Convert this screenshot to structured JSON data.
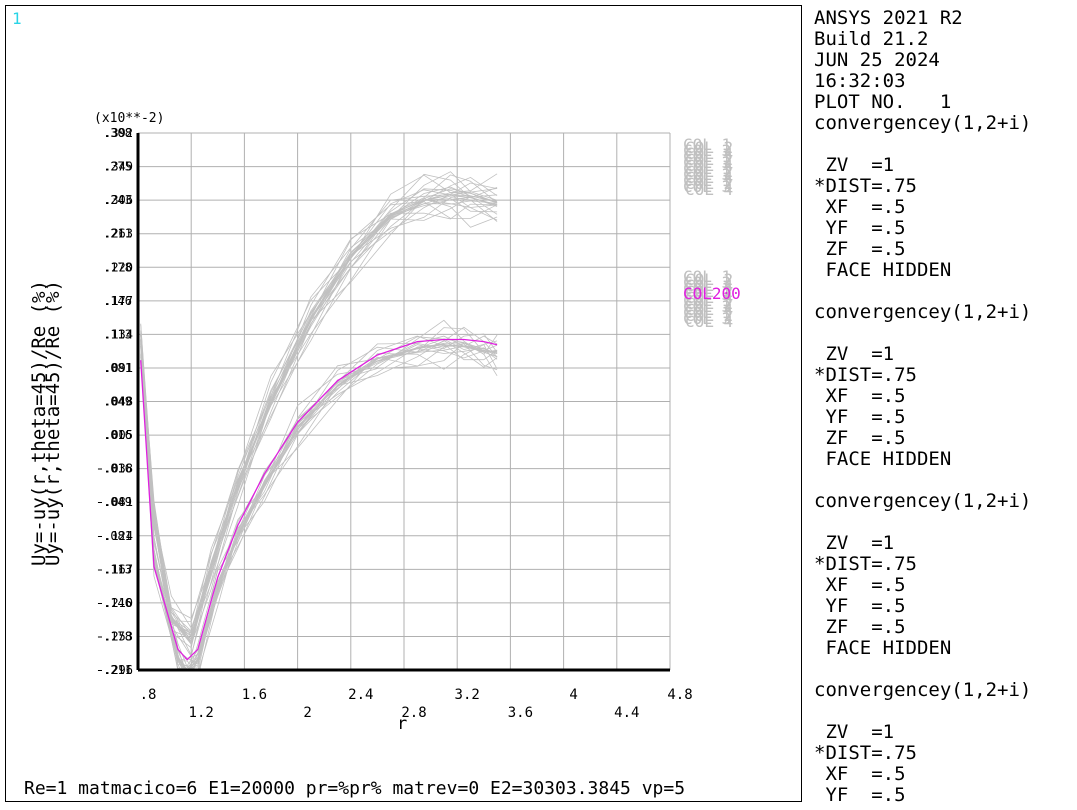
{
  "window_number": "1",
  "multiplier_label": "(x10**-2)",
  "ylabel_overlap": [
    "Uy=-uy(r,theta=45)/Re (%)",
    "Uy=-uy(r,theta=45)/Re (%)"
  ],
  "xlabel": "r",
  "footer": "Re=1 matmacico=6 E1=20000 pr=%pr% matrev=0 E2=30303.3845 vp=5",
  "colors": {
    "curves": "#c0c0c0",
    "highlight": "#e020e0",
    "grid": "#b0b0b0",
    "axis": "#000000",
    "window_no": "#29d4e6"
  },
  "info": {
    "lines": [
      "ANSYS 2021 R2",
      "Build 21.2",
      "JUN 25 2024",
      "16:32:03",
      "PLOT NO.   1",
      "convergencey(1,2+i)",
      "",
      " ZV  =1",
      "*DIST=.75",
      " XF  =.5",
      " YF  =.5",
      " ZF  =.5",
      " FACE HIDDEN",
      "",
      "convergencey(1,2+i)",
      "",
      " ZV  =1",
      "*DIST=.75",
      " XF  =.5",
      " YF  =.5",
      " ZF  =.5",
      " FACE HIDDEN",
      "",
      "convergencey(1,2+i)",
      "",
      " ZV  =1",
      "*DIST=.75",
      " XF  =.5",
      " YF  =.5",
      " ZF  =.5",
      " FACE HIDDEN",
      "",
      "convergencey(1,2+i)",
      "",
      " ZV  =1",
      "*DIST=.75",
      " XF  =.5",
      " YF  =.5"
    ]
  },
  "chart_data": {
    "type": "line",
    "title": "",
    "xlabel": "r",
    "ylabel": "Uy=-uy(r,theta=45)/Re (%)",
    "xlim": [
      0.8,
      4.8
    ],
    "x_ticks": [
      ".8",
      "1.2",
      "1.6",
      "2",
      "2.4",
      "2.8",
      "3.2",
      "3.6",
      "4",
      "4.4",
      "4.8"
    ],
    "y_tick_count": 17,
    "y_tick_labels_overlapping": [
      [
        ".308",
        ".275",
        ".243",
        ".211",
        ".178",
        ".146",
        ".113",
        ".081",
        ".049",
        ".016",
        "-.016",
        "-.049",
        "-.081",
        "-.113",
        "-.146",
        "-.178",
        "-.211"
      ],
      [
        ".392",
        ".349",
        ".306",
        ".263",
        ".220",
        ".177",
        ".134",
        ".091",
        ".048",
        ".005",
        "-.038",
        "-.081",
        "-.124",
        "-.167",
        "-.210",
        "-.253",
        "-.296"
      ]
    ],
    "ylim": [
      -0.2,
      0.32
    ],
    "grid": true,
    "legend_position": "right",
    "legend_upper_labels": [
      "COL 1",
      "COL 2",
      "COL 3",
      "COL 4"
    ],
    "legend_lower_labels": [
      "COL 1",
      "COL 2",
      "COL 3",
      "COL 4"
    ],
    "highlighted_series": {
      "name": "COL200",
      "x": [
        0.82,
        0.92,
        1.1,
        1.17,
        1.25,
        1.4,
        1.55,
        1.75,
        2.0,
        2.3,
        2.6,
        2.9,
        3.1,
        3.25,
        3.4,
        3.5
      ],
      "y": [
        0.1,
        -0.1,
        -0.18,
        -0.19,
        -0.18,
        -0.11,
        -0.06,
        -0.01,
        0.04,
        0.08,
        0.105,
        0.118,
        0.12,
        0.12,
        0.118,
        0.115
      ]
    },
    "lower_band_series": {
      "x": [
        0.82,
        0.92,
        1.1,
        1.17,
        1.25,
        1.4,
        1.55,
        1.75,
        2.0,
        2.3,
        2.6,
        2.9,
        3.1,
        3.25,
        3.4,
        3.5
      ],
      "y": [
        0.12,
        -0.09,
        -0.19,
        -0.2,
        -0.19,
        -0.12,
        -0.07,
        -0.02,
        0.035,
        0.075,
        0.1,
        0.112,
        0.115,
        0.113,
        0.11,
        0.107
      ],
      "spread": 0.02,
      "count": 20
    },
    "upper_band_series": {
      "x": [
        0.82,
        0.92,
        1.05,
        1.2,
        1.35,
        1.55,
        1.8,
        2.1,
        2.4,
        2.7,
        2.95,
        3.15,
        3.3,
        3.5
      ],
      "y": [
        0.12,
        -0.05,
        -0.15,
        -0.17,
        -0.1,
        -0.02,
        0.06,
        0.14,
        0.2,
        0.24,
        0.255,
        0.26,
        0.258,
        0.252
      ],
      "spread": 0.03,
      "count": 24
    }
  }
}
